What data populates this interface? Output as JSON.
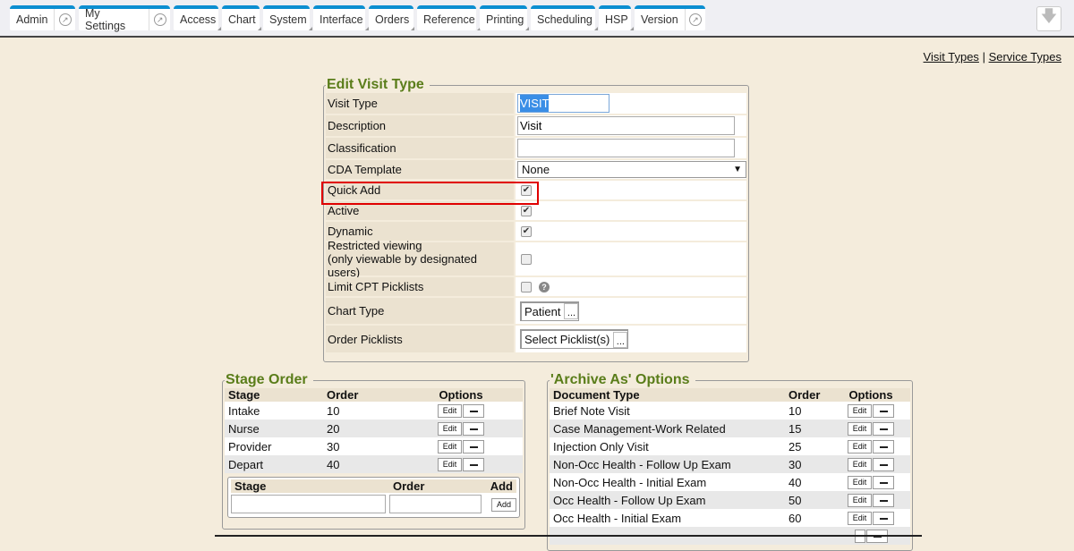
{
  "nav": {
    "tabs": [
      {
        "label": "Admin",
        "ext": true,
        "dd": false
      },
      {
        "label": "My Settings",
        "ext": true,
        "dd": false
      },
      {
        "label": "Access",
        "ext": false,
        "dd": true
      },
      {
        "label": "Chart",
        "ext": false,
        "dd": true
      },
      {
        "label": "System",
        "ext": false,
        "dd": true
      },
      {
        "label": "Interface",
        "ext": false,
        "dd": true
      },
      {
        "label": "Orders",
        "ext": false,
        "dd": true
      },
      {
        "label": "Reference",
        "ext": false,
        "dd": true
      },
      {
        "label": "Printing",
        "ext": false,
        "dd": true
      },
      {
        "label": "Scheduling",
        "ext": false,
        "dd": true
      },
      {
        "label": "HSP",
        "ext": false,
        "dd": true
      },
      {
        "label": "Version",
        "ext": true,
        "dd": false
      }
    ],
    "accent": "#0b8ed1",
    "download_icon": "arrow-down-icon"
  },
  "links": {
    "visit_types": "Visit Types",
    "sep": "|",
    "service_types": "Service Types"
  },
  "edit": {
    "title": "Edit Visit Type",
    "visit_type_label": "Visit Type",
    "visit_type": "VISIT",
    "description_label": "Description",
    "description": "Visit",
    "classification_label": "Classification",
    "classification": "",
    "cda_label": "CDA Template",
    "cda": "None",
    "quick_add_label": "Quick Add",
    "quick_add": true,
    "active_label": "Active",
    "active": true,
    "dynamic_label": "Dynamic",
    "dynamic": true,
    "restricted_label_1": "Restricted viewing",
    "restricted_label_2": "(only viewable by designated users)",
    "restricted": false,
    "limit_cpt_label": "Limit CPT Picklists",
    "limit_cpt": false,
    "chart_type_label": "Chart Type",
    "chart_type": "Patient",
    "order_picklists_label": "Order Picklists",
    "order_picklists": "Select Picklist(s)",
    "dots": "...",
    "highlight_color": "#e00000"
  },
  "stage": {
    "title": "Stage Order",
    "headers": [
      "Stage",
      "Order",
      "Options"
    ],
    "rows": [
      {
        "stage": "Intake",
        "order": "10"
      },
      {
        "stage": "Nurse",
        "order": "20"
      },
      {
        "stage": "Provider",
        "order": "30"
      },
      {
        "stage": "Depart",
        "order": "40"
      }
    ],
    "edit_label": "Edit",
    "add_headers": [
      "Stage",
      "Order",
      "Add"
    ],
    "add_label": "Add"
  },
  "archive": {
    "title": "'Archive As' Options",
    "headers": [
      "Document Type",
      "Order",
      "Options"
    ],
    "rows": [
      {
        "doc": "Brief Note Visit",
        "order": "10"
      },
      {
        "doc": "Case Management-Work Related",
        "order": "15"
      },
      {
        "doc": "Injection Only Visit",
        "order": "25"
      },
      {
        "doc": "Non-Occ Health - Follow Up Exam",
        "order": "30"
      },
      {
        "doc": "Non-Occ Health - Initial Exam",
        "order": "40"
      },
      {
        "doc": "Occ Health - Follow Up Exam",
        "order": "50"
      },
      {
        "doc": "Occ Health - Initial Exam",
        "order": "60"
      }
    ],
    "edit_label": "Edit"
  }
}
